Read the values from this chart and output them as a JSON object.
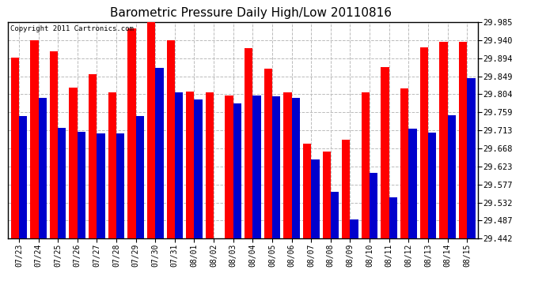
{
  "title": "Barometric Pressure Daily High/Low 20110816",
  "copyright": "Copyright 2011 Cartronics.com",
  "dates": [
    "07/23",
    "07/24",
    "07/25",
    "07/26",
    "07/27",
    "07/28",
    "07/29",
    "07/30",
    "07/31",
    "08/01",
    "08/02",
    "08/03",
    "08/04",
    "08/05",
    "08/06",
    "08/07",
    "08/08",
    "08/09",
    "08/10",
    "08/11",
    "08/12",
    "08/13",
    "08/14",
    "08/15"
  ],
  "highs": [
    29.895,
    29.94,
    29.912,
    29.82,
    29.855,
    29.808,
    29.97,
    29.985,
    29.94,
    29.81,
    29.808,
    29.8,
    29.92,
    29.868,
    29.808,
    29.68,
    29.66,
    29.69,
    29.808,
    29.872,
    29.818,
    29.922,
    29.935,
    29.935
  ],
  "lows": [
    29.75,
    29.795,
    29.72,
    29.71,
    29.706,
    29.706,
    29.75,
    29.87,
    29.808,
    29.79,
    29.442,
    29.78,
    29.8,
    29.798,
    29.795,
    29.64,
    29.558,
    29.49,
    29.606,
    29.545,
    29.718,
    29.708,
    29.752,
    29.845
  ],
  "high_color": "#ff0000",
  "low_color": "#0000cc",
  "bg_color": "#ffffff",
  "plot_bg_color": "#ffffff",
  "grid_color": "#bbbbbb",
  "ymin": 29.442,
  "ymax": 29.985,
  "yticks": [
    29.985,
    29.94,
    29.894,
    29.849,
    29.804,
    29.759,
    29.713,
    29.668,
    29.623,
    29.577,
    29.532,
    29.487,
    29.442
  ],
  "bar_width": 0.42,
  "title_fontsize": 11,
  "copyright_fontsize": 6.5,
  "tick_fontsize": 7,
  "ytick_fontsize": 7.5
}
